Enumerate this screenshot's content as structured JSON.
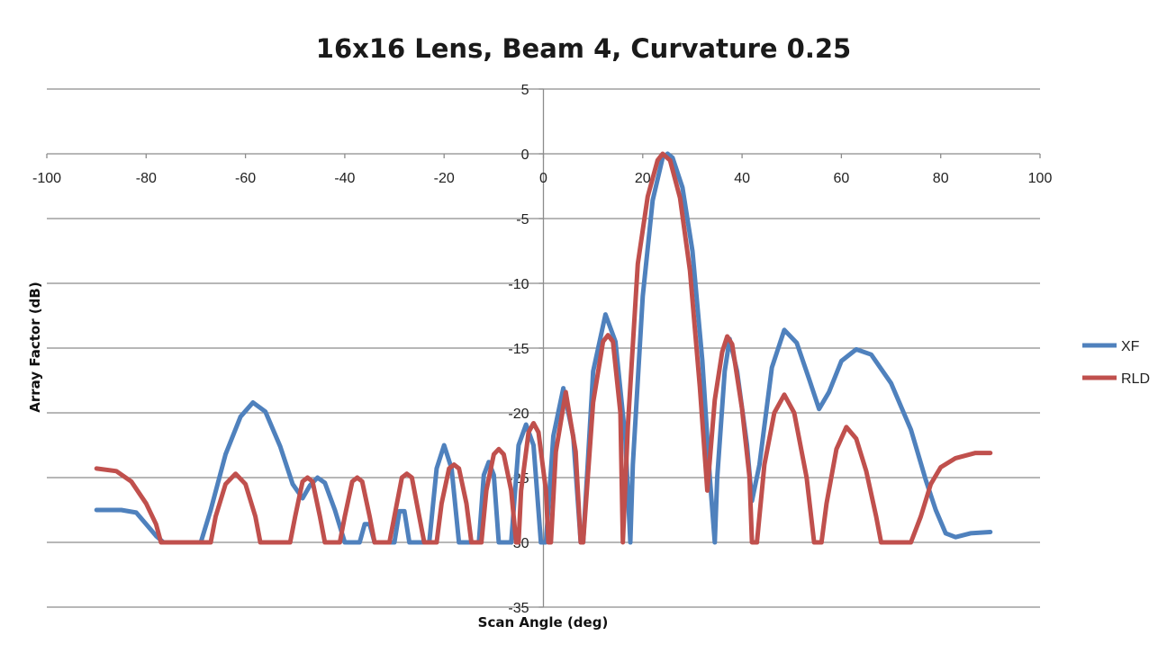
{
  "chart_data": {
    "type": "line",
    "title": "16x16 Lens, Beam 4, Curvature 0.25",
    "xlabel": "Scan Angle (deg)",
    "ylabel": "Array Factor (dB)",
    "xlim": [
      -100,
      100
    ],
    "ylim": [
      -35,
      5
    ],
    "x_ticks": [
      -100,
      -80,
      -60,
      -40,
      -20,
      0,
      20,
      40,
      60,
      80,
      100
    ],
    "y_ticks": [
      5,
      0,
      -5,
      -10,
      -15,
      -20,
      -25,
      -30,
      -35
    ],
    "grid": "horizontal",
    "legend_position": "right",
    "series": [
      {
        "name": "XF",
        "color": "#4f81bd",
        "points": [
          [
            -90,
            -27.5
          ],
          [
            -85,
            -27.5
          ],
          [
            -82,
            -27.7
          ],
          [
            -80,
            -28.6
          ],
          [
            -78,
            -29.5
          ],
          [
            -76.5,
            -30
          ],
          [
            -69,
            -30
          ],
          [
            -67,
            -27.5
          ],
          [
            -64,
            -23.2
          ],
          [
            -61,
            -20.3
          ],
          [
            -58.5,
            -19.2
          ],
          [
            -56,
            -19.9
          ],
          [
            -53,
            -22.6
          ],
          [
            -50.5,
            -25.5
          ],
          [
            -48.5,
            -26.6
          ],
          [
            -47,
            -25.6
          ],
          [
            -45.5,
            -25
          ],
          [
            -44,
            -25.4
          ],
          [
            -42,
            -27.5
          ],
          [
            -40,
            -30
          ],
          [
            -37,
            -30
          ],
          [
            -36,
            -28.6
          ],
          [
            -35,
            -28.6
          ],
          [
            -34,
            -30
          ],
          [
            -30,
            -30
          ],
          [
            -29,
            -27.6
          ],
          [
            -28,
            -27.6
          ],
          [
            -27,
            -30
          ],
          [
            -23,
            -30
          ],
          [
            -21.5,
            -24.3
          ],
          [
            -20,
            -22.5
          ],
          [
            -18.5,
            -24.3
          ],
          [
            -17,
            -30
          ],
          [
            -13,
            -30
          ],
          [
            -12,
            -24.8
          ],
          [
            -11,
            -23.8
          ],
          [
            -10,
            -24.8
          ],
          [
            -9,
            -30
          ],
          [
            -6.5,
            -30
          ],
          [
            -5,
            -22.5
          ],
          [
            -3.5,
            -20.9
          ],
          [
            -2,
            -22.5
          ],
          [
            -0.5,
            -30
          ],
          [
            0.5,
            -30
          ],
          [
            2,
            -21.8
          ],
          [
            4,
            -18.1
          ],
          [
            6,
            -21.8
          ],
          [
            7.5,
            -30
          ],
          [
            8,
            -30
          ],
          [
            10,
            -16.8
          ],
          [
            12.5,
            -12.4
          ],
          [
            14.5,
            -14.5
          ],
          [
            16.5,
            -22
          ],
          [
            17.5,
            -30
          ],
          [
            18,
            -24
          ],
          [
            20,
            -11
          ],
          [
            22,
            -3.6
          ],
          [
            24,
            -0.3
          ],
          [
            25,
            0
          ],
          [
            26,
            -0.3
          ],
          [
            28,
            -2.6
          ],
          [
            30,
            -7.5
          ],
          [
            32,
            -16
          ],
          [
            33.5,
            -25
          ],
          [
            34.5,
            -30
          ],
          [
            35,
            -25
          ],
          [
            36.5,
            -16.8
          ],
          [
            37.5,
            -14.3
          ],
          [
            39,
            -16.8
          ],
          [
            41,
            -22.5
          ],
          [
            42,
            -26.8
          ],
          [
            43.5,
            -24
          ],
          [
            46,
            -16.5
          ],
          [
            48.5,
            -13.6
          ],
          [
            51,
            -14.6
          ],
          [
            53.5,
            -17.4
          ],
          [
            55.5,
            -19.7
          ],
          [
            57.5,
            -18.4
          ],
          [
            60,
            -16
          ],
          [
            63,
            -15.1
          ],
          [
            66,
            -15.5
          ],
          [
            70,
            -17.7
          ],
          [
            74,
            -21.3
          ],
          [
            77,
            -25.2
          ],
          [
            79,
            -27.5
          ],
          [
            81,
            -29.3
          ],
          [
            83,
            -29.6
          ],
          [
            86,
            -29.3
          ],
          [
            90,
            -29.2
          ]
        ]
      },
      {
        "name": "RLD",
        "color": "#c0504d",
        "points": [
          [
            -90,
            -24.3
          ],
          [
            -86,
            -24.5
          ],
          [
            -83,
            -25.3
          ],
          [
            -80,
            -27
          ],
          [
            -78,
            -28.6
          ],
          [
            -77,
            -30
          ],
          [
            -67,
            -30
          ],
          [
            -66,
            -28
          ],
          [
            -64,
            -25.5
          ],
          [
            -62,
            -24.7
          ],
          [
            -60,
            -25.5
          ],
          [
            -58,
            -28
          ],
          [
            -57,
            -30
          ],
          [
            -51,
            -30
          ],
          [
            -50,
            -28
          ],
          [
            -48.5,
            -25.3
          ],
          [
            -47.5,
            -25
          ],
          [
            -46.5,
            -25.3
          ],
          [
            -45,
            -28
          ],
          [
            -44,
            -30
          ],
          [
            -41,
            -30
          ],
          [
            -40,
            -28
          ],
          [
            -38.5,
            -25.3
          ],
          [
            -37.5,
            -25
          ],
          [
            -36.5,
            -25.3
          ],
          [
            -35,
            -28
          ],
          [
            -34,
            -30
          ],
          [
            -31,
            -30
          ],
          [
            -30,
            -28
          ],
          [
            -28.5,
            -25
          ],
          [
            -27.5,
            -24.7
          ],
          [
            -26.5,
            -25
          ],
          [
            -25,
            -28
          ],
          [
            -24,
            -30
          ],
          [
            -21.5,
            -30
          ],
          [
            -20.5,
            -27
          ],
          [
            -19,
            -24.3
          ],
          [
            -18,
            -24
          ],
          [
            -17,
            -24.3
          ],
          [
            -15.5,
            -27
          ],
          [
            -14.5,
            -30
          ],
          [
            -12.5,
            -30
          ],
          [
            -11.5,
            -26
          ],
          [
            -10,
            -23.2
          ],
          [
            -9,
            -22.8
          ],
          [
            -8,
            -23.2
          ],
          [
            -6.5,
            -26
          ],
          [
            -5.5,
            -30
          ],
          [
            -5,
            -30
          ],
          [
            -4.5,
            -26
          ],
          [
            -3,
            -21.5
          ],
          [
            -2,
            -20.8
          ],
          [
            -1,
            -21.5
          ],
          [
            0.5,
            -26
          ],
          [
            1,
            -30
          ],
          [
            1.5,
            -30
          ],
          [
            2.5,
            -23
          ],
          [
            4.5,
            -18.4
          ],
          [
            6.5,
            -23
          ],
          [
            7.5,
            -30
          ],
          [
            8,
            -30
          ],
          [
            10,
            -19.2
          ],
          [
            12,
            -14.5
          ],
          [
            13,
            -14
          ],
          [
            14,
            -14.5
          ],
          [
            15.5,
            -20
          ],
          [
            16,
            -30
          ],
          [
            17,
            -21
          ],
          [
            19,
            -8.5
          ],
          [
            21,
            -3.3
          ],
          [
            23,
            -0.5
          ],
          [
            24,
            0
          ],
          [
            25.5,
            -0.5
          ],
          [
            27.5,
            -3.4
          ],
          [
            29.5,
            -9
          ],
          [
            31.5,
            -18
          ],
          [
            33,
            -26
          ],
          [
            34.5,
            -19
          ],
          [
            36,
            -15.3
          ],
          [
            37,
            -14.1
          ],
          [
            38,
            -14.7
          ],
          [
            40,
            -19.7
          ],
          [
            41.5,
            -25
          ],
          [
            42,
            -30
          ],
          [
            43,
            -30
          ],
          [
            44.5,
            -24
          ],
          [
            46.5,
            -20
          ],
          [
            48.5,
            -18.6
          ],
          [
            50.5,
            -20
          ],
          [
            53,
            -25
          ],
          [
            54.5,
            -30
          ],
          [
            56,
            -30
          ],
          [
            57,
            -27
          ],
          [
            59,
            -22.8
          ],
          [
            61,
            -21.1
          ],
          [
            63,
            -22
          ],
          [
            65,
            -24.5
          ],
          [
            67,
            -28
          ],
          [
            68,
            -30
          ],
          [
            74,
            -30
          ],
          [
            76,
            -28
          ],
          [
            78,
            -25.5
          ],
          [
            80,
            -24.2
          ],
          [
            83,
            -23.5
          ],
          [
            87,
            -23.1
          ],
          [
            90,
            -23.1
          ]
        ]
      }
    ]
  }
}
